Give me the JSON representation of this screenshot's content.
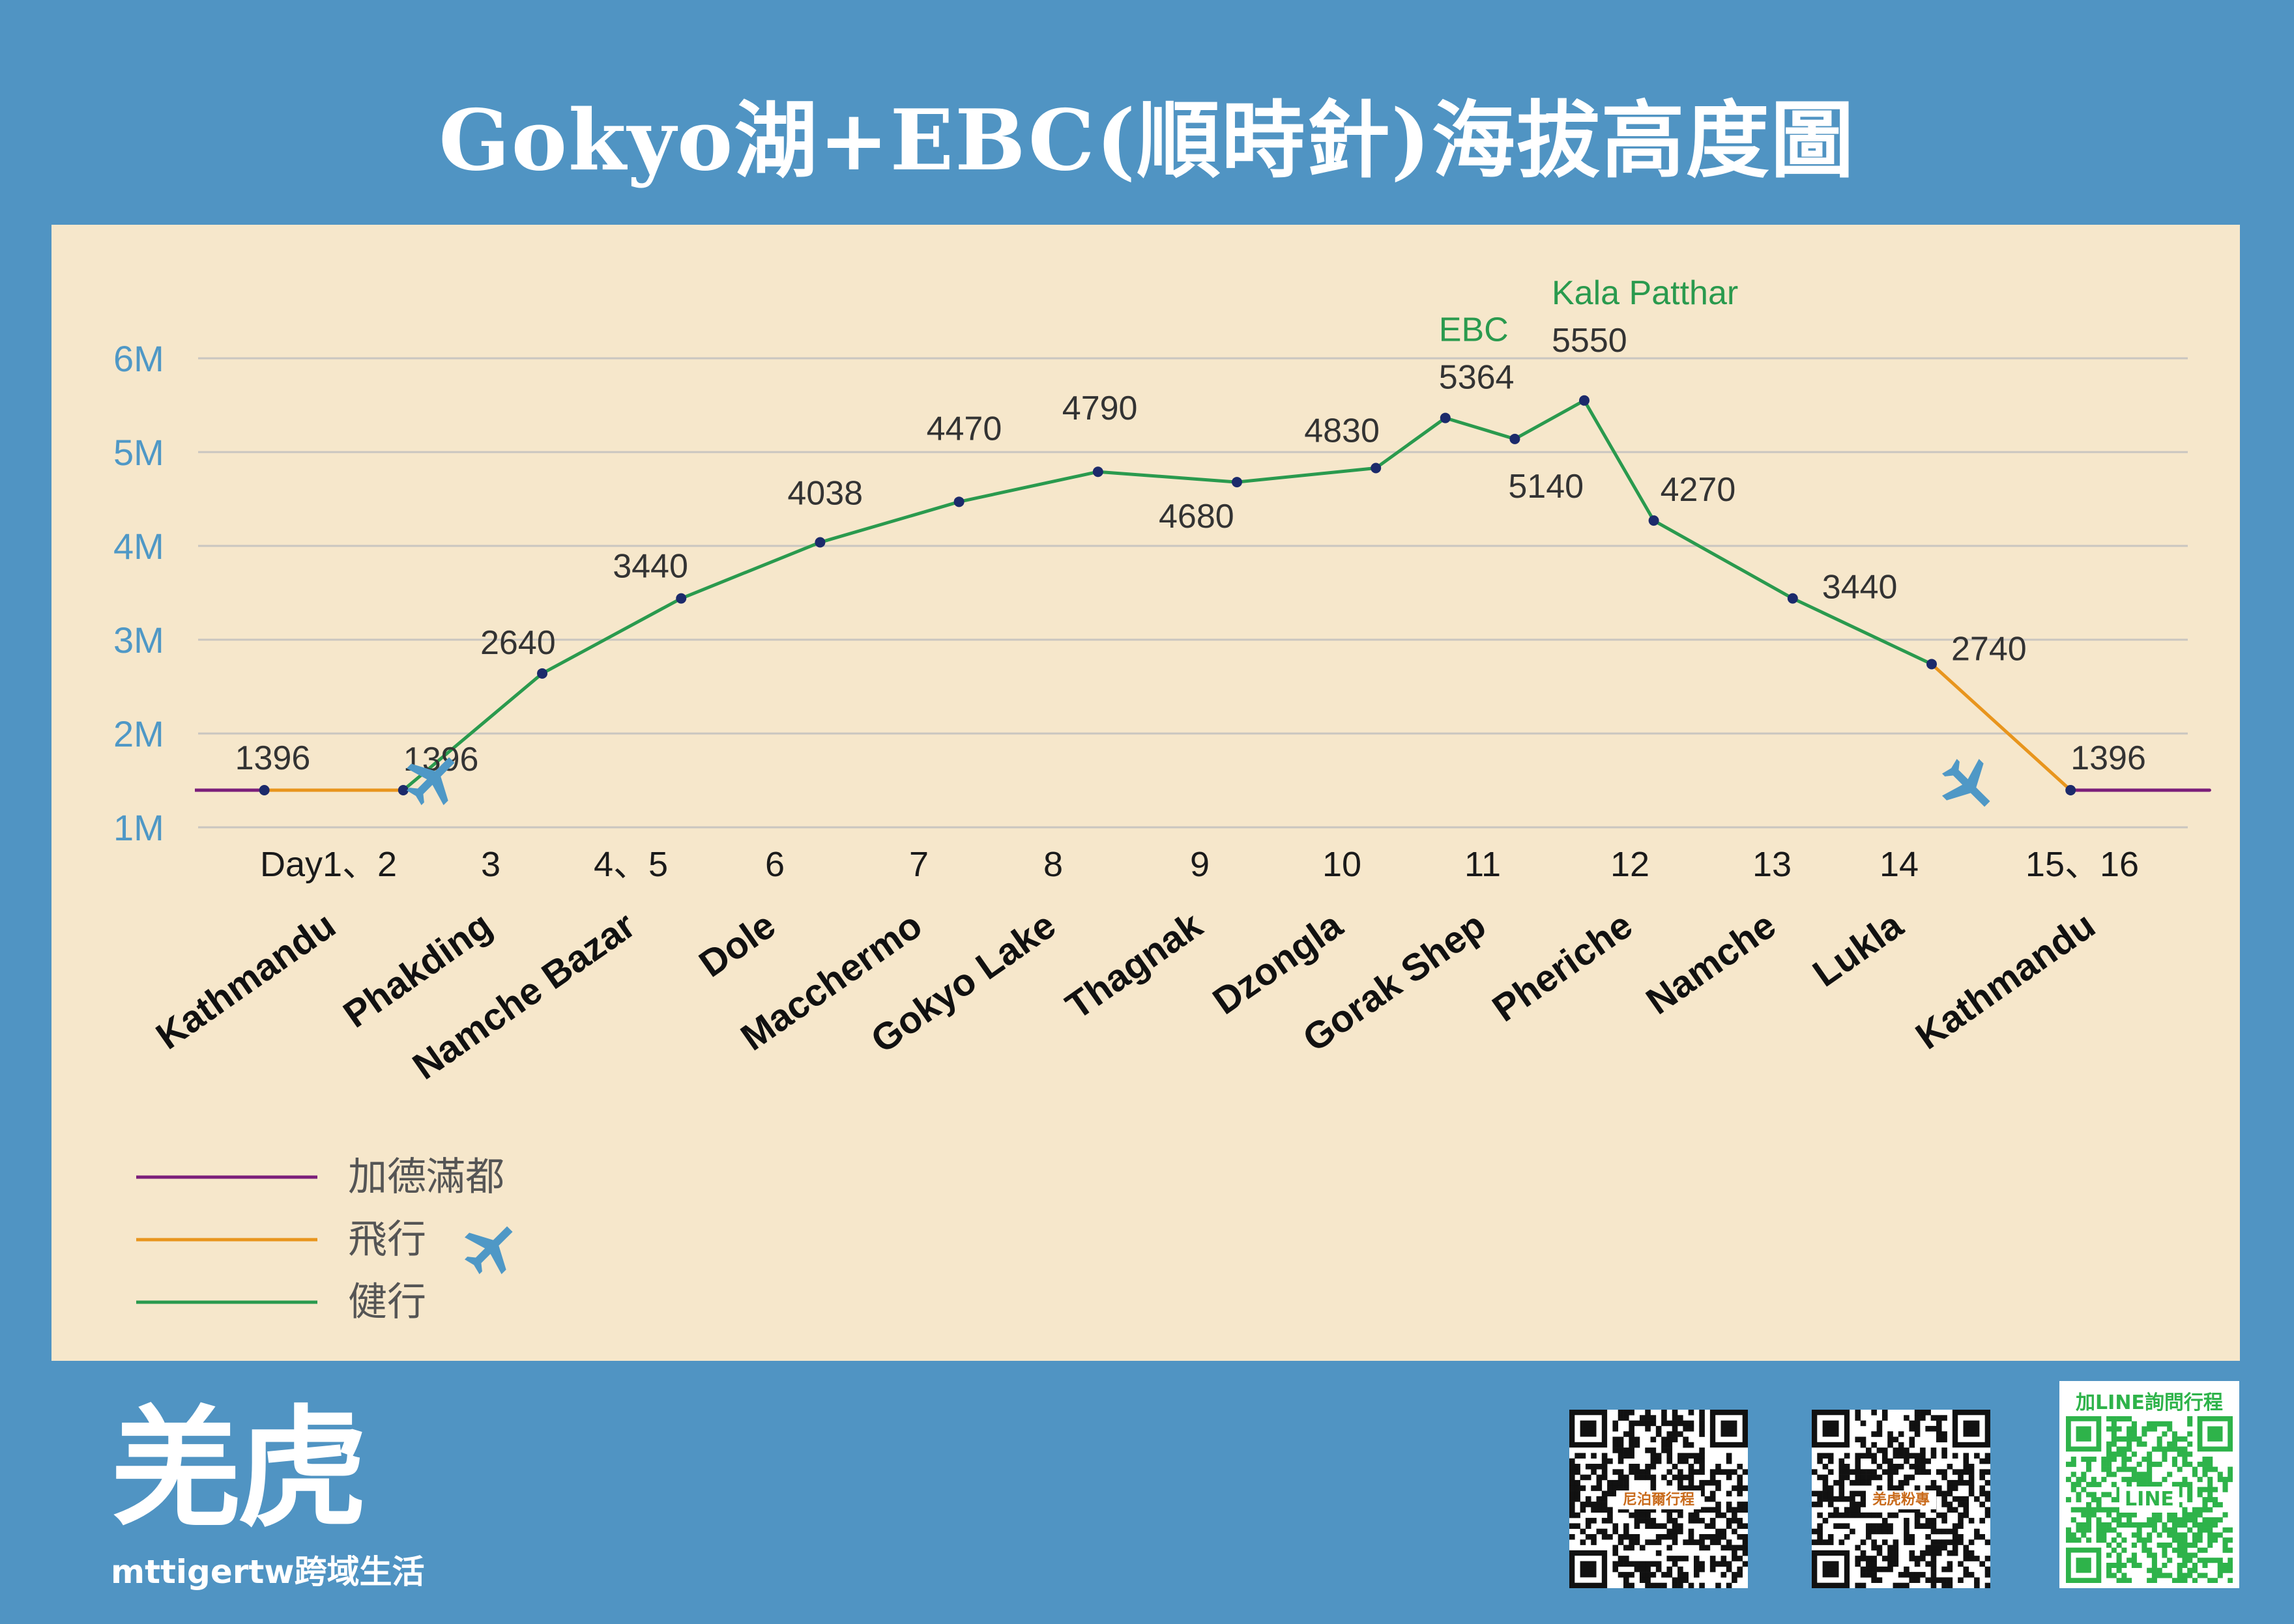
{
  "title": "Gokyo湖+EBC(順時針)海拔高度圖",
  "chart_data": {
    "type": "line",
    "y_ticks": [
      "1M",
      "2M",
      "3M",
      "4M",
      "5M",
      "6M"
    ],
    "ylim": [
      1000,
      6000
    ],
    "grid": true,
    "points": [
      {
        "x": 0.5,
        "value": 1396,
        "label": "1396",
        "segment": "kathmandu"
      },
      {
        "x": 1.5,
        "value": 1396,
        "label": "1396",
        "segment": "flight"
      },
      {
        "x": 2.5,
        "value": 2640,
        "label": "2640",
        "segment": "trek"
      },
      {
        "x": 3.5,
        "value": 3440,
        "label": "3440",
        "segment": "trek"
      },
      {
        "x": 4.5,
        "value": 4038,
        "label": "4038",
        "segment": "trek"
      },
      {
        "x": 5.5,
        "value": 4470,
        "label": "4470",
        "segment": "trek"
      },
      {
        "x": 6.5,
        "value": 4790,
        "label": "4790",
        "segment": "trek"
      },
      {
        "x": 7.5,
        "value": 4680,
        "label": "4680",
        "segment": "trek"
      },
      {
        "x": 8.5,
        "value": 4830,
        "label": "4830",
        "segment": "trek"
      },
      {
        "x": 9.0,
        "value": 5364,
        "label": "5364",
        "segment": "trek",
        "annotation": "EBC"
      },
      {
        "x": 9.5,
        "value": 5140,
        "label": "5140",
        "segment": "trek"
      },
      {
        "x": 10.0,
        "value": 5550,
        "label": "5550",
        "segment": "trek",
        "annotation": "Kala Patthar"
      },
      {
        "x": 10.5,
        "value": 4270,
        "label": "4270",
        "segment": "trek"
      },
      {
        "x": 11.5,
        "value": 3440,
        "label": "3440",
        "segment": "trek"
      },
      {
        "x": 12.5,
        "value": 2740,
        "label": "2740",
        "segment": "trek"
      },
      {
        "x": 13.5,
        "value": 1396,
        "label": "1396",
        "segment": "flight"
      },
      {
        "x": 14.5,
        "value": 1396,
        "label": "",
        "segment": "kathmandu"
      }
    ],
    "days": [
      "Day1、2",
      "3",
      "4、5",
      "6",
      "7",
      "8",
      "9",
      "10",
      "11",
      "12",
      "13",
      "14",
      "15、16"
    ],
    "places": [
      "Kathmandu",
      "Phakding",
      "Namche Bazar",
      "Dole",
      "Macchermo",
      "Gokyo Lake",
      "Thagnak",
      "Dzongla",
      "Gorak Shep",
      "Pheriche",
      "Namche",
      "Lukla",
      "Kathmandu"
    ],
    "legend": [
      {
        "label": "加德滿都",
        "color": "#7b1e7a"
      },
      {
        "label": "飛行",
        "color": "#e8951d"
      },
      {
        "label": "健行",
        "color": "#2a9a4e"
      }
    ],
    "colors": {
      "kathmandu": "#7b1e7a",
      "flight": "#e8951d",
      "trek": "#2a9a4e",
      "marker": "#1c2a6b",
      "grid": "#c9c6c0",
      "plane": "#4f98c6"
    }
  },
  "footer": {
    "brand_logo": "羌虎",
    "brand_name": "mttigertw跨域生活",
    "qr1_caption": "尼泊爾行程",
    "qr2_caption": "羌虎粉專",
    "line_label": "加LINE詢問行程",
    "line_badge": "LINE",
    "plane_icon": "airplane-icon",
    "qr_icon": "qr-code-icon"
  }
}
